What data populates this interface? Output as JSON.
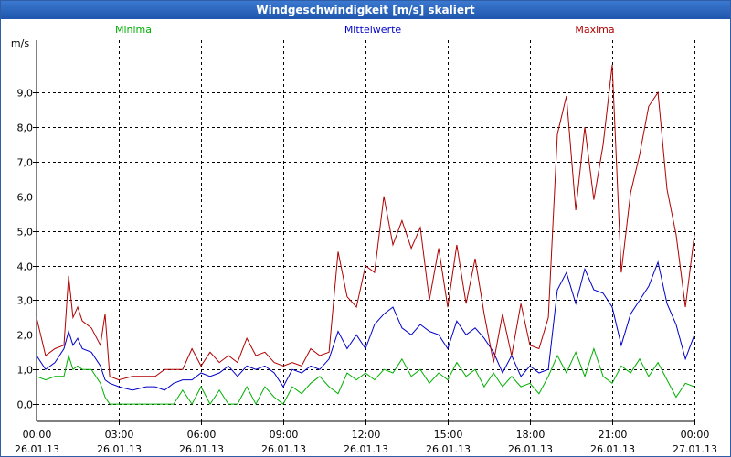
{
  "window": {
    "title": "Windgeschwindigkeit [m/s] skaliert"
  },
  "chart_data": {
    "type": "line",
    "title": "Windgeschwindigkeit [m/s] skaliert",
    "ylabel": "m/s",
    "xlabel": "",
    "xlim": [
      0,
      24
    ],
    "ylim": [
      -0.5,
      10.3
    ],
    "grid": true,
    "yticks": [
      {
        "value": 0,
        "label": "0,0"
      },
      {
        "value": 1,
        "label": "1,0"
      },
      {
        "value": 2,
        "label": "2,0"
      },
      {
        "value": 3,
        "label": "3,0"
      },
      {
        "value": 4,
        "label": "4,0"
      },
      {
        "value": 5,
        "label": "5,0"
      },
      {
        "value": 6,
        "label": "6,0"
      },
      {
        "value": 7,
        "label": "7,0"
      },
      {
        "value": 8,
        "label": "8,0"
      },
      {
        "value": 9,
        "label": "9,0"
      }
    ],
    "xticks": [
      {
        "value": 0,
        "time": "00:00",
        "date": "26.01.13"
      },
      {
        "value": 3,
        "time": "03:00",
        "date": "26.01.13"
      },
      {
        "value": 6,
        "time": "06:00",
        "date": "26.01.13"
      },
      {
        "value": 9,
        "time": "09:00",
        "date": "26.01.13"
      },
      {
        "value": 12,
        "time": "12:00",
        "date": "26.01.13"
      },
      {
        "value": 15,
        "time": "15:00",
        "date": "26.01.13"
      },
      {
        "value": 18,
        "time": "18:00",
        "date": "26.01.13"
      },
      {
        "value": 21,
        "time": "21:00",
        "date": "26.01.13"
      },
      {
        "value": 24,
        "time": "00:00",
        "date": "27.01.13"
      }
    ],
    "series": [
      {
        "name": "Minima",
        "color": "#00b000",
        "x": [
          0,
          0.33,
          0.67,
          1.0,
          1.17,
          1.33,
          1.5,
          1.67,
          2.0,
          2.33,
          2.5,
          2.67,
          3.0,
          3.5,
          4.0,
          4.33,
          4.67,
          5.0,
          5.33,
          5.67,
          6.0,
          6.33,
          6.67,
          7.0,
          7.33,
          7.67,
          8.0,
          8.33,
          8.67,
          9.0,
          9.33,
          9.67,
          10.0,
          10.33,
          10.67,
          11.0,
          11.33,
          11.67,
          12.0,
          12.33,
          12.67,
          13.0,
          13.33,
          13.67,
          14.0,
          14.33,
          14.67,
          15.0,
          15.33,
          15.67,
          16.0,
          16.33,
          16.67,
          17.0,
          17.33,
          17.67,
          18.0,
          18.33,
          18.67,
          19.0,
          19.33,
          19.67,
          20.0,
          20.33,
          20.67,
          21.0,
          21.33,
          21.67,
          22.0,
          22.33,
          22.67,
          23.0,
          23.33,
          23.67,
          24.0
        ],
        "values": [
          0.8,
          0.7,
          0.8,
          0.8,
          1.4,
          1.0,
          1.1,
          1.0,
          1.0,
          0.6,
          0.2,
          0.0,
          0.0,
          0.0,
          0.0,
          0.0,
          0.0,
          0.0,
          0.4,
          0.0,
          0.5,
          0.0,
          0.4,
          0.0,
          0.0,
          0.5,
          0.0,
          0.5,
          0.2,
          0.0,
          0.5,
          0.3,
          0.6,
          0.8,
          0.5,
          0.3,
          0.9,
          0.7,
          0.9,
          0.7,
          1.0,
          0.9,
          1.3,
          0.8,
          1.0,
          0.6,
          0.9,
          0.7,
          1.2,
          0.8,
          1.0,
          0.5,
          0.9,
          0.5,
          0.8,
          0.5,
          0.6,
          0.3,
          0.8,
          1.4,
          0.9,
          1.5,
          0.8,
          1.6,
          0.8,
          0.6,
          1.1,
          0.9,
          1.3,
          0.8,
          1.2,
          0.7,
          0.2,
          0.6,
          0.5
        ]
      },
      {
        "name": "Mittelwerte",
        "color": "#0000c8",
        "x": [
          0,
          0.33,
          0.67,
          1.0,
          1.17,
          1.33,
          1.5,
          1.67,
          2.0,
          2.33,
          2.5,
          2.67,
          3.0,
          3.5,
          4.0,
          4.33,
          4.67,
          5.0,
          5.33,
          5.67,
          6.0,
          6.33,
          6.67,
          7.0,
          7.33,
          7.67,
          8.0,
          8.33,
          8.67,
          9.0,
          9.33,
          9.67,
          10.0,
          10.33,
          10.67,
          11.0,
          11.33,
          11.67,
          12.0,
          12.33,
          12.67,
          13.0,
          13.33,
          13.67,
          14.0,
          14.33,
          14.67,
          15.0,
          15.33,
          15.67,
          16.0,
          16.33,
          16.67,
          17.0,
          17.33,
          17.67,
          18.0,
          18.33,
          18.67,
          19.0,
          19.33,
          19.67,
          20.0,
          20.33,
          20.67,
          21.0,
          21.33,
          21.67,
          22.0,
          22.33,
          22.67,
          23.0,
          23.33,
          23.67,
          24.0
        ],
        "values": [
          1.4,
          1.0,
          1.2,
          1.6,
          2.1,
          1.7,
          1.9,
          1.6,
          1.5,
          1.1,
          0.7,
          0.6,
          0.5,
          0.4,
          0.5,
          0.5,
          0.4,
          0.6,
          0.7,
          0.7,
          0.9,
          0.8,
          0.9,
          1.1,
          0.8,
          1.1,
          1.0,
          1.1,
          0.9,
          0.5,
          1.0,
          0.9,
          1.1,
          1.0,
          1.3,
          2.1,
          1.6,
          2.0,
          1.6,
          2.3,
          2.6,
          2.8,
          2.2,
          2.0,
          2.3,
          2.1,
          2.0,
          1.6,
          2.4,
          2.0,
          2.2,
          1.9,
          1.5,
          0.9,
          1.4,
          0.8,
          1.1,
          0.9,
          1.0,
          3.3,
          3.8,
          2.9,
          3.9,
          3.3,
          3.2,
          2.8,
          1.7,
          2.6,
          3.0,
          3.4,
          4.1,
          2.9,
          2.3,
          1.3,
          2.0
        ]
      },
      {
        "name": "Maxima",
        "color": "#b00000",
        "x": [
          0,
          0.33,
          0.67,
          1.0,
          1.17,
          1.33,
          1.5,
          1.67,
          2.0,
          2.33,
          2.5,
          2.67,
          3.0,
          3.5,
          4.0,
          4.33,
          4.67,
          5.0,
          5.33,
          5.67,
          6.0,
          6.33,
          6.67,
          7.0,
          7.33,
          7.67,
          8.0,
          8.33,
          8.67,
          9.0,
          9.33,
          9.67,
          10.0,
          10.33,
          10.67,
          11.0,
          11.33,
          11.67,
          12.0,
          12.33,
          12.67,
          13.0,
          13.33,
          13.67,
          14.0,
          14.33,
          14.67,
          15.0,
          15.33,
          15.67,
          16.0,
          16.33,
          16.67,
          17.0,
          17.33,
          17.67,
          18.0,
          18.33,
          18.67,
          19.0,
          19.33,
          19.67,
          20.0,
          20.33,
          20.67,
          21.0,
          21.33,
          21.67,
          22.0,
          22.33,
          22.67,
          23.0,
          23.33,
          23.67,
          24.0
        ],
        "values": [
          2.5,
          1.4,
          1.6,
          1.7,
          3.7,
          2.5,
          2.8,
          2.4,
          2.2,
          1.7,
          2.6,
          0.8,
          0.7,
          0.8,
          0.8,
          0.8,
          1.0,
          1.0,
          1.0,
          1.6,
          1.1,
          1.5,
          1.2,
          1.4,
          1.2,
          1.9,
          1.4,
          1.5,
          1.2,
          1.1,
          1.2,
          1.1,
          1.6,
          1.4,
          1.5,
          4.4,
          3.1,
          2.8,
          4.0,
          3.8,
          6.0,
          4.6,
          5.3,
          4.5,
          5.1,
          3.0,
          4.5,
          2.8,
          4.6,
          2.9,
          4.2,
          2.6,
          1.2,
          2.6,
          1.4,
          2.9,
          1.7,
          1.6,
          2.5,
          7.8,
          8.9,
          5.6,
          8.0,
          5.9,
          7.5,
          9.8,
          3.8,
          6.1,
          7.2,
          8.6,
          9.0,
          6.2,
          4.9,
          2.8,
          4.9
        ]
      }
    ]
  }
}
